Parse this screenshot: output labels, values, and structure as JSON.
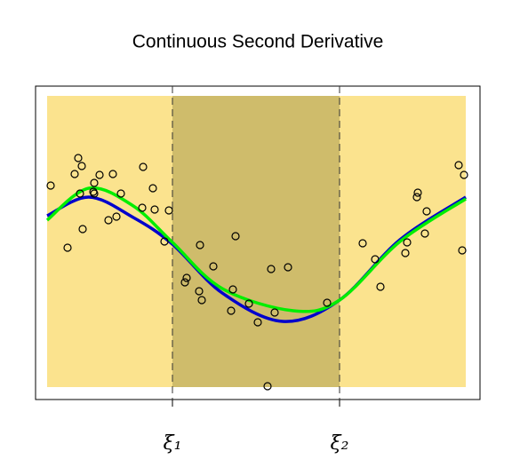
{
  "chart_data": {
    "type": "scatter",
    "title": "Continuous Second Derivative",
    "xlim": [
      0,
      500
    ],
    "ylim": [
      0,
      353
    ],
    "xticks": [
      {
        "value": 154,
        "label": "ξ₁"
      },
      {
        "value": 342,
        "label": "ξ₂"
      }
    ],
    "regions": [
      {
        "x": [
          13,
          484
        ],
        "y": [
          14,
          342
        ],
        "color": "#fbe38e"
      },
      {
        "x": [
          154,
          342
        ],
        "y": [
          14,
          342
        ],
        "color": "#cfbc6b"
      }
    ],
    "points": {
      "color": "#000000",
      "x": [
        17,
        48,
        52,
        44,
        72,
        87,
        66,
        65,
        50,
        66,
        96,
        121,
        132,
        120,
        134,
        150,
        91,
        82,
        53,
        36,
        145,
        185,
        225,
        200,
        170,
        168,
        184,
        187,
        222,
        240,
        220,
        250,
        265,
        284,
        269,
        261,
        328,
        368,
        382,
        388,
        418,
        416,
        430,
        429,
        440,
        438,
        476,
        482,
        480
      ],
      "y": [
        241,
        272,
        263,
        254,
        253,
        254,
        244,
        234,
        232,
        232,
        232,
        262,
        238,
        216,
        214,
        213,
        206,
        202,
        192,
        171,
        178,
        174,
        184,
        150,
        137,
        132,
        122,
        112,
        124,
        108,
        100,
        87,
        147,
        149,
        98,
        15,
        109,
        176,
        158,
        127,
        177,
        165,
        233,
        228,
        212,
        187,
        264,
        253,
        168
      ]
    },
    "series": [
      {
        "color": "#0000cc",
        "x": [
          13,
          60,
          110,
          154,
          210,
          278,
          342,
          410,
          484
        ],
        "values": [
          207,
          228,
          205,
          175,
          120,
          88,
          112,
          180,
          228
        ]
      },
      {
        "color": "#00ee00",
        "x": [
          13,
          60,
          110,
          154,
          210,
          290,
          342,
          410,
          484
        ],
        "values": [
          202,
          238,
          218,
          177,
          125,
          100,
          112,
          178,
          226
        ]
      }
    ]
  }
}
